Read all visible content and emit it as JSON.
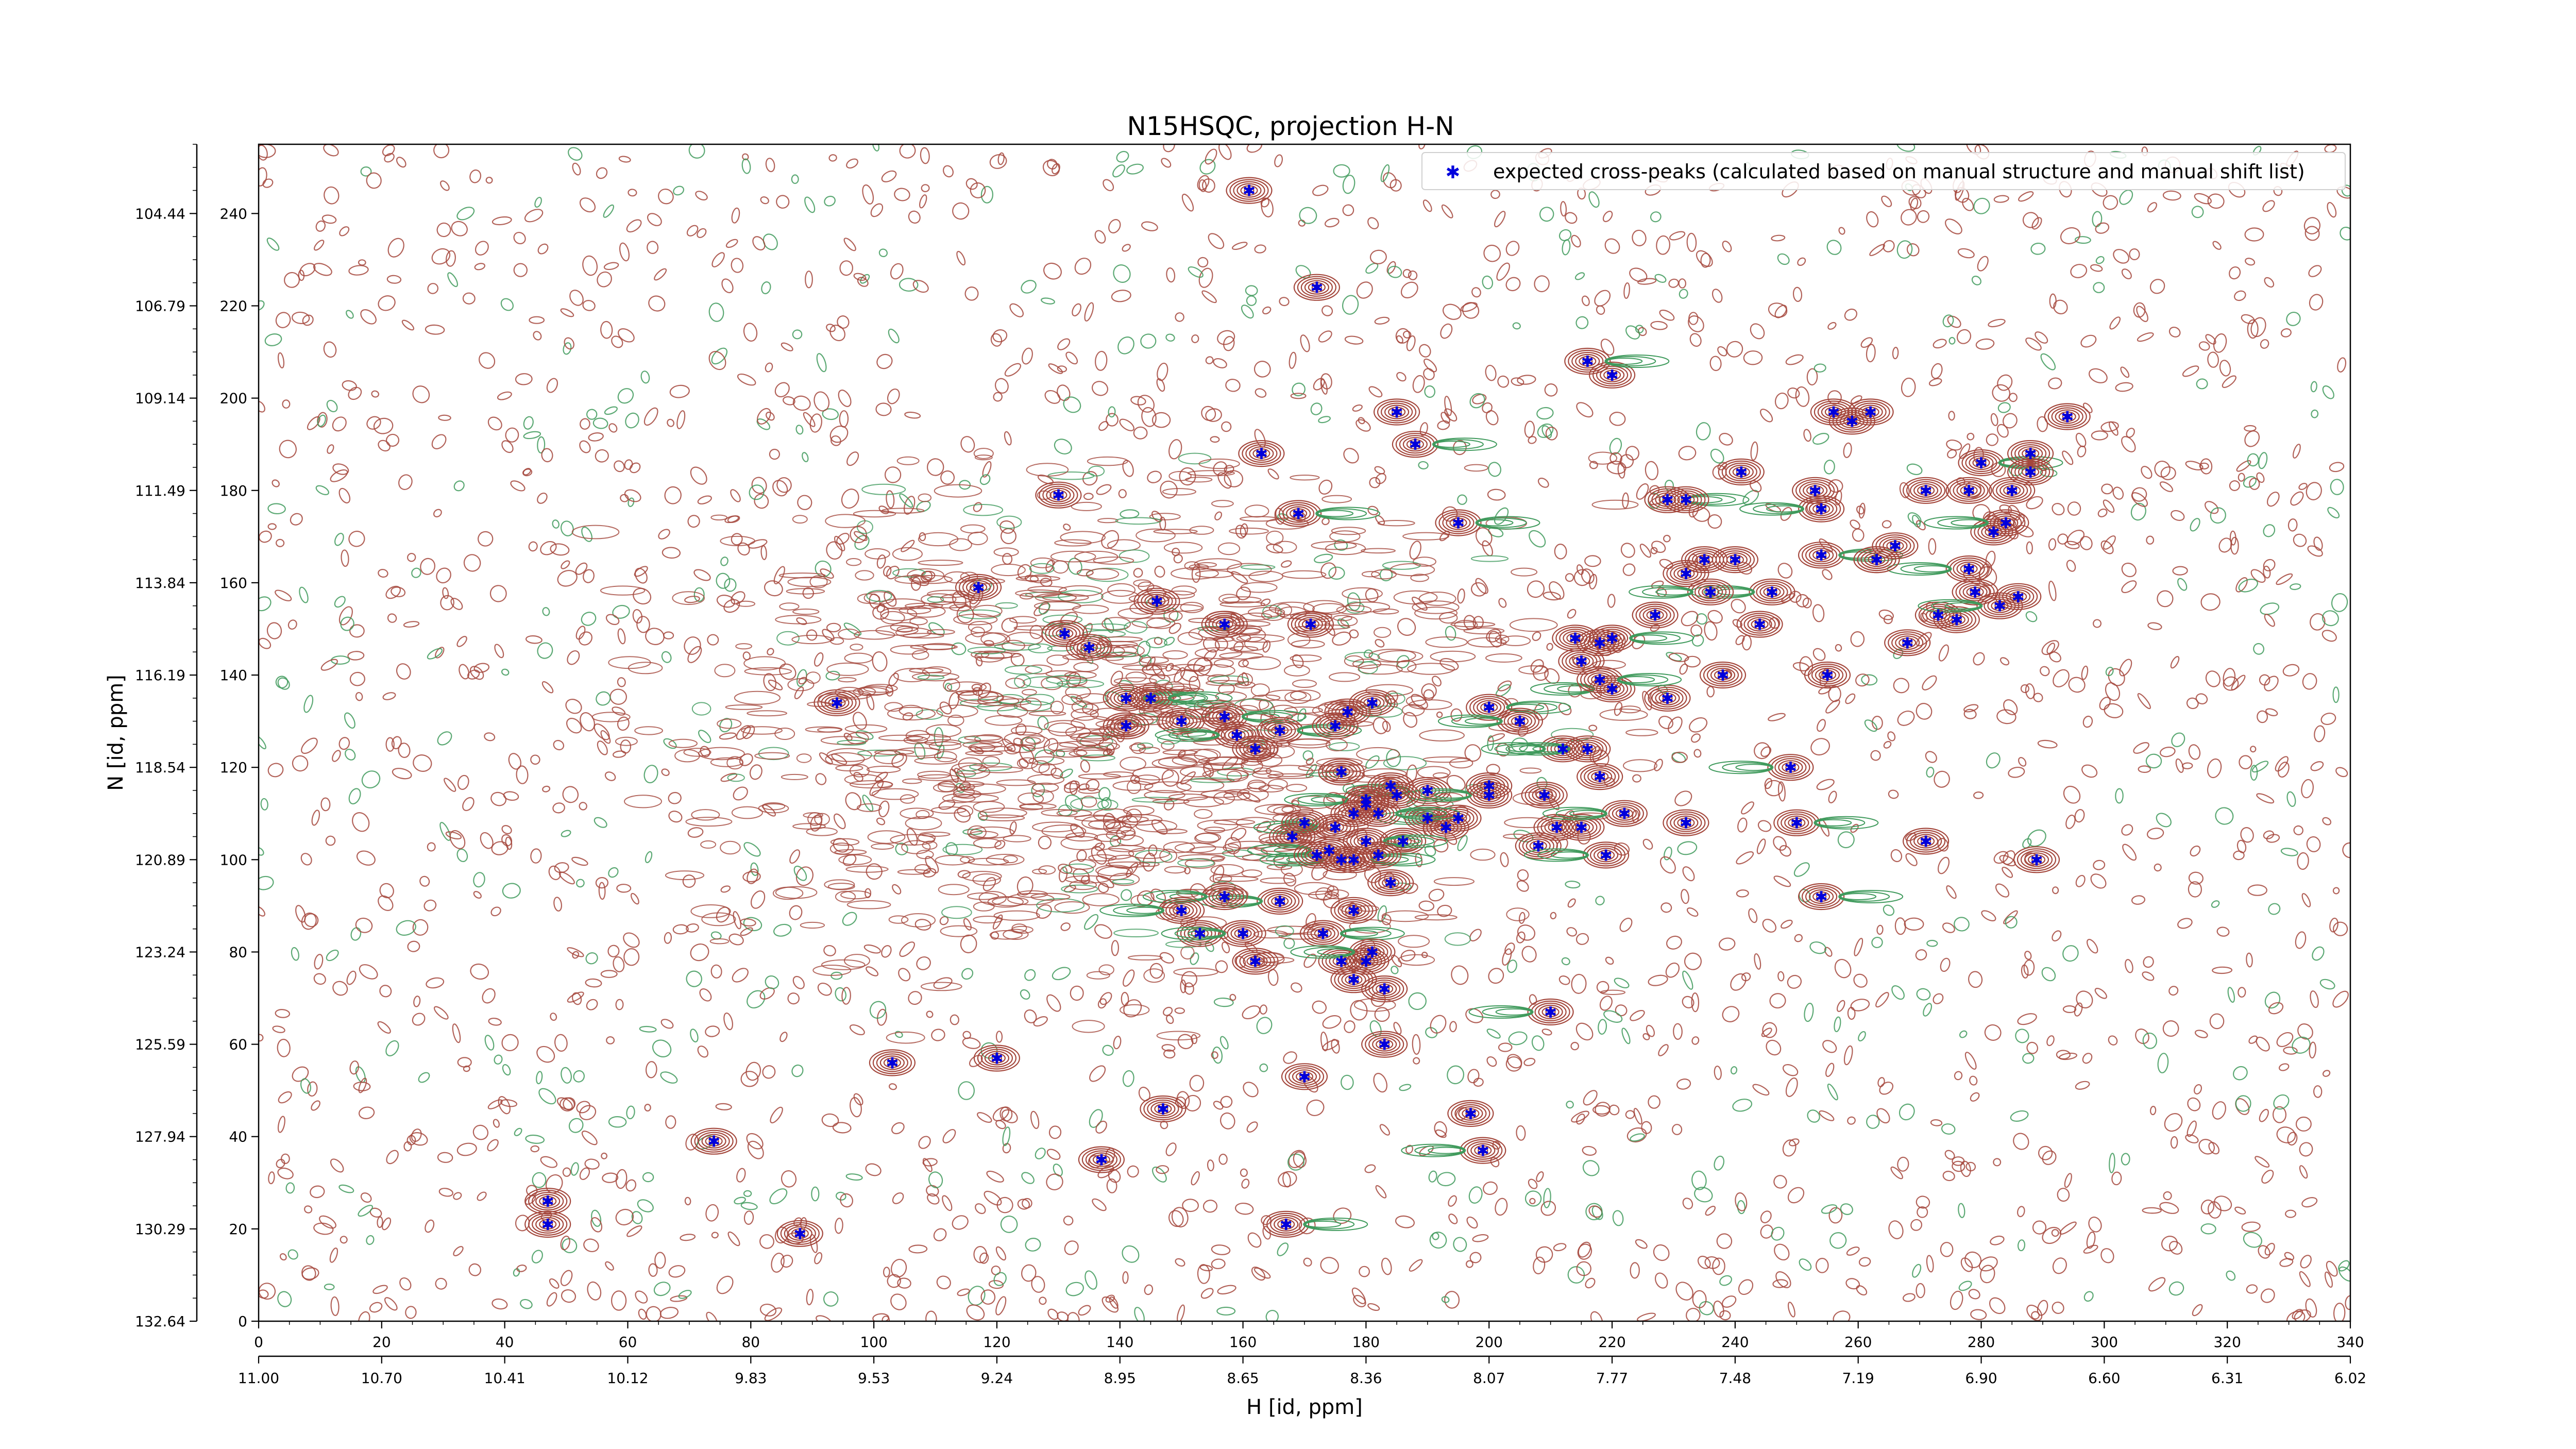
{
  "chart_data": {
    "type": "scatter",
    "title": "N15HSQC, projection H-N",
    "xlabel": "H [id, ppm]",
    "ylabel": "N [id, ppm]",
    "xlim": [
      0,
      340
    ],
    "ylim": [
      0,
      255
    ],
    "x_ticks_primary": [
      0,
      20,
      40,
      60,
      80,
      100,
      120,
      140,
      160,
      180,
      200,
      220,
      240,
      260,
      280,
      300,
      320,
      340
    ],
    "x_ticks_secondary": [
      "11.00",
      "10.70",
      "10.41",
      "10.12",
      "9.83",
      "9.53",
      "9.24",
      "8.95",
      "8.65",
      "8.36",
      "8.07",
      "7.77",
      "7.48",
      "7.19",
      "6.90",
      "6.60",
      "6.31",
      "6.02"
    ],
    "y_ticks_primary": [
      0,
      20,
      40,
      60,
      80,
      100,
      120,
      140,
      160,
      180,
      200,
      220,
      240
    ],
    "y_ticks_secondary": [
      "132.64",
      "130.29",
      "127.94",
      "125.59",
      "123.24",
      "120.89",
      "118.54",
      "116.19",
      "113.84",
      "111.49",
      "109.14",
      "106.79",
      "104.44"
    ],
    "legend": {
      "label": "expected cross-peaks (calculated based on manual structure and manual shift list)",
      "placement": "top-right"
    },
    "colors": {
      "positive_contour": "#a4473c",
      "negative_contour": "#3f9a5c",
      "peak_marker": "#0000dd"
    },
    "series": [
      {
        "name": "expected cross-peaks (calculated based on manual structure and manual shift list)",
        "points": [
          [
            47,
            26
          ],
          [
            47,
            21
          ],
          [
            74,
            39
          ],
          [
            88,
            19
          ],
          [
            103,
            56
          ],
          [
            120,
            57
          ],
          [
            137,
            35
          ],
          [
            147,
            46
          ],
          [
            167,
            21
          ],
          [
            161,
            245
          ],
          [
            172,
            224
          ],
          [
            220,
            205
          ],
          [
            185,
            197
          ],
          [
            188,
            190
          ],
          [
            163,
            188
          ],
          [
            169,
            175
          ],
          [
            130,
            179
          ],
          [
            117,
            159
          ],
          [
            131,
            149
          ],
          [
            135,
            146
          ],
          [
            94,
            134
          ],
          [
            146,
            156
          ],
          [
            157,
            151
          ],
          [
            171,
            151
          ],
          [
            141,
            135
          ],
          [
            141,
            129
          ],
          [
            145,
            135
          ],
          [
            150,
            130
          ],
          [
            157,
            131
          ],
          [
            159,
            127
          ],
          [
            162,
            124
          ],
          [
            166,
            128
          ],
          [
            175,
            129
          ],
          [
            181,
            134
          ],
          [
            177,
            132
          ],
          [
            190,
            115
          ],
          [
            195,
            173
          ],
          [
            200,
            133
          ],
          [
            216,
            208
          ],
          [
            229,
            178
          ],
          [
            232,
            178
          ],
          [
            241,
            184
          ],
          [
            259,
            195
          ],
          [
            262,
            197
          ],
          [
            271,
            180
          ],
          [
            253,
            180
          ],
          [
            254,
            176
          ],
          [
            254,
            166
          ],
          [
            246,
            158
          ],
          [
            236,
            158
          ],
          [
            227,
            153
          ],
          [
            232,
            162
          ],
          [
            235,
            165
          ],
          [
            240,
            165
          ],
          [
            244,
            151
          ],
          [
            229,
            135
          ],
          [
            215,
            143
          ],
          [
            218,
            147
          ],
          [
            220,
            137
          ],
          [
            218,
            139
          ],
          [
            220,
            148
          ],
          [
            214,
            148
          ],
          [
            205,
            130
          ],
          [
            200,
            114
          ],
          [
            209,
            114
          ],
          [
            211,
            107
          ],
          [
            208,
            103
          ],
          [
            215,
            107
          ],
          [
            219,
            101
          ],
          [
            222,
            110
          ],
          [
            218,
            118
          ],
          [
            212,
            124
          ],
          [
            216,
            124
          ],
          [
            200,
            116
          ],
          [
            195,
            109
          ],
          [
            190,
            109
          ],
          [
            186,
            104
          ],
          [
            178,
            110
          ],
          [
            175,
            107
          ],
          [
            170,
            108
          ],
          [
            168,
            105
          ],
          [
            176,
            119
          ],
          [
            180,
            113
          ],
          [
            184,
            116
          ],
          [
            185,
            114
          ],
          [
            193,
            107
          ],
          [
            182,
            110
          ],
          [
            180,
            112
          ],
          [
            180,
            104
          ],
          [
            178,
            100
          ],
          [
            176,
            100
          ],
          [
            174,
            102
          ],
          [
            172,
            101
          ],
          [
            182,
            101
          ],
          [
            184,
            95
          ],
          [
            178,
            89
          ],
          [
            166,
            91
          ],
          [
            157,
            92
          ],
          [
            150,
            89
          ],
          [
            153,
            84
          ],
          [
            160,
            84
          ],
          [
            162,
            78
          ],
          [
            173,
            84
          ],
          [
            176,
            78
          ],
          [
            178,
            74
          ],
          [
            180,
            78
          ],
          [
            181,
            80
          ],
          [
            183,
            72
          ],
          [
            183,
            60
          ],
          [
            170,
            53
          ],
          [
            210,
            67
          ],
          [
            197,
            45
          ],
          [
            199,
            37
          ],
          [
            232,
            108
          ],
          [
            250,
            108
          ],
          [
            255,
            140
          ],
          [
            238,
            140
          ],
          [
            256,
            197
          ],
          [
            280,
            186
          ],
          [
            282,
            171
          ],
          [
            284,
            173
          ],
          [
            288,
            184
          ],
          [
            294,
            196
          ],
          [
            288,
            188
          ],
          [
            285,
            180
          ],
          [
            278,
            180
          ],
          [
            268,
            147
          ],
          [
            273,
            153
          ],
          [
            276,
            152
          ],
          [
            278,
            163
          ],
          [
            266,
            168
          ],
          [
            263,
            165
          ],
          [
            271,
            104
          ],
          [
            289,
            100
          ],
          [
            249,
            120
          ],
          [
            254,
            92
          ],
          [
            263,
            165
          ],
          [
            279,
            158
          ],
          [
            283,
            155
          ],
          [
            286,
            157
          ]
        ]
      }
    ]
  }
}
